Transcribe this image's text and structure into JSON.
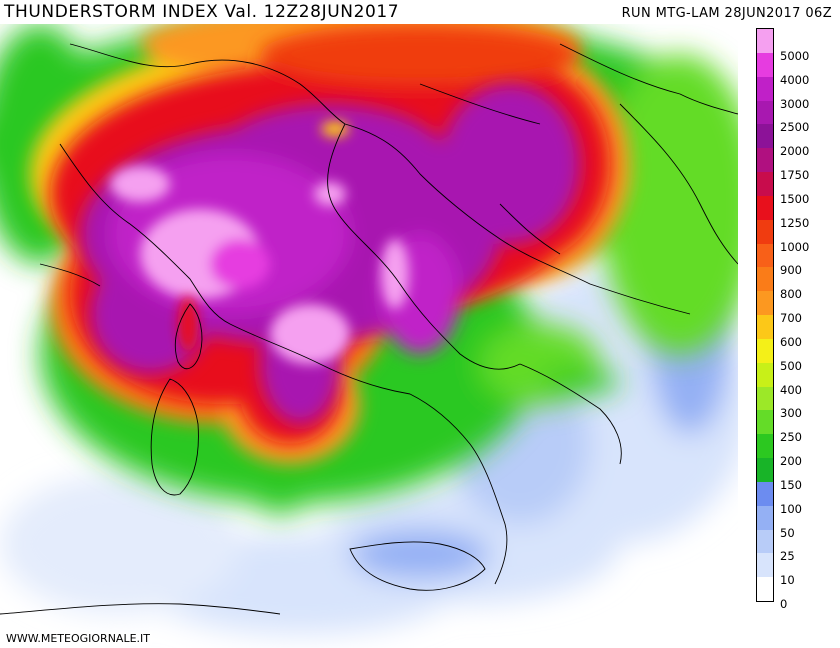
{
  "header": {
    "title": "THUNDERSTORM INDEX Val. 12Z28JUN2017",
    "run": "RUN MTG-LAM 28JUN2017 06Z"
  },
  "footer": {
    "credit": "WWW.METEOGIORNALE.IT"
  },
  "legend": {
    "entries": [
      {
        "label": "5000",
        "color": "#f5a0f0"
      },
      {
        "label": "4000",
        "color": "#e63ce0"
      },
      {
        "label": "3000",
        "color": "#c020c8"
      },
      {
        "label": "2500",
        "color": "#a818b0"
      },
      {
        "label": "2000",
        "color": "#8c1298"
      },
      {
        "label": "1750",
        "color": "#b01080"
      },
      {
        "label": "1500",
        "color": "#c80c4c"
      },
      {
        "label": "1250",
        "color": "#e8101c"
      },
      {
        "label": "1000",
        "color": "#f03c10"
      },
      {
        "label": "900",
        "color": "#f86018"
      },
      {
        "label": "800",
        "color": "#fa7c18"
      },
      {
        "label": "700",
        "color": "#fc9820"
      },
      {
        "label": "600",
        "color": "#fcc818"
      },
      {
        "label": "500",
        "color": "#f4f018"
      },
      {
        "label": "400",
        "color": "#c8f018"
      },
      {
        "label": "300",
        "color": "#9ce828"
      },
      {
        "label": "250",
        "color": "#64dc28"
      },
      {
        "label": "200",
        "color": "#2cc820"
      },
      {
        "label": "150",
        "color": "#18b428"
      },
      {
        "label": "100",
        "color": "#6c8cf0"
      },
      {
        "label": "50",
        "color": "#94b0f4"
      },
      {
        "label": "25",
        "color": "#b8ccf8"
      },
      {
        "label": "10",
        "color": "#d8e4fc"
      },
      {
        "label": "0",
        "color": "#ffffff"
      }
    ]
  }
}
